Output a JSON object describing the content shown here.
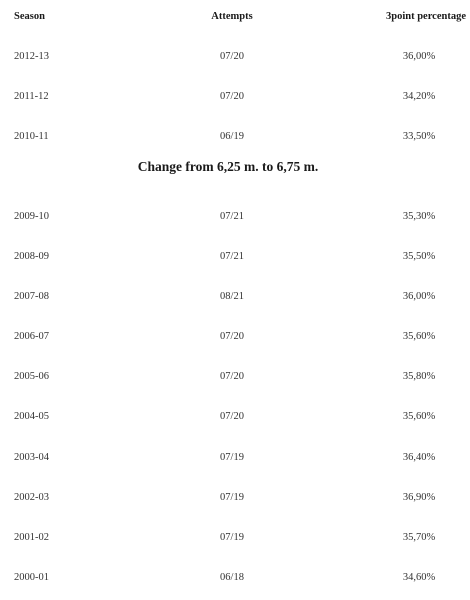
{
  "header": {
    "season": "Season",
    "attempts": "Attempts",
    "percentage": "3point percentage"
  },
  "rows_before": [
    {
      "season": "2012-13",
      "attempts": "07/20",
      "percentage": "36,00%"
    },
    {
      "season": "2011-12",
      "attempts": "07/20",
      "percentage": "34,20%"
    },
    {
      "season": "2010-11",
      "attempts": "06/19",
      "percentage": "33,50%"
    }
  ],
  "divider": "Change from 6,25 m. to 6,75 m.",
  "rows_after": [
    {
      "season": "2009-10",
      "attempts": "07/21",
      "percentage": "35,30%"
    },
    {
      "season": "2008-09",
      "attempts": "07/21",
      "percentage": "35,50%"
    },
    {
      "season": "2007-08",
      "attempts": "08/21",
      "percentage": "36,00%"
    },
    {
      "season": "2006-07",
      "attempts": "07/20",
      "percentage": "35,60%"
    },
    {
      "season": "2005-06",
      "attempts": "07/20",
      "percentage": "35,80%"
    },
    {
      "season": "2004-05",
      "attempts": "07/20",
      "percentage": "35,60%"
    },
    {
      "season": "2003-04",
      "attempts": "07/19",
      "percentage": "36,40%"
    },
    {
      "season": "2002-03",
      "attempts": "07/19",
      "percentage": "36,90%"
    },
    {
      "season": "2001-02",
      "attempts": "07/19",
      "percentage": "35,70%"
    },
    {
      "season": "2000-01",
      "attempts": "06/18",
      "percentage": "34,60%"
    }
  ]
}
